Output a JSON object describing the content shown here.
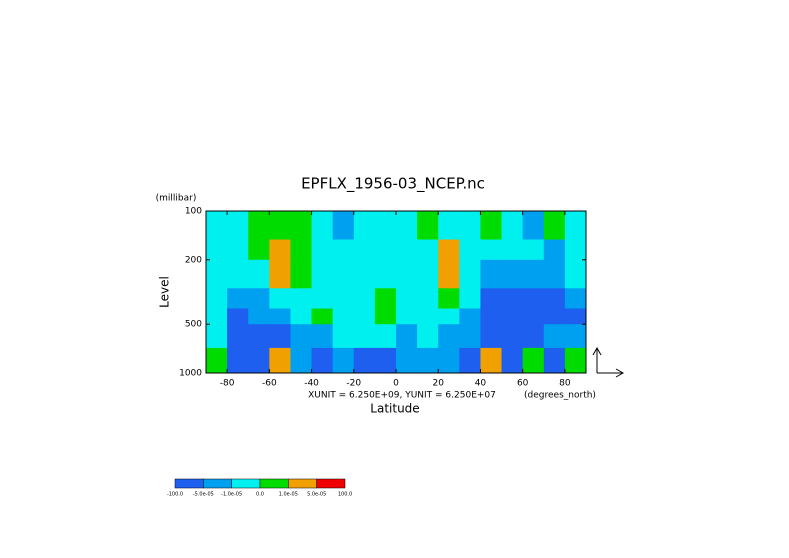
{
  "chart_data": {
    "type": "contour",
    "title": "EPFLX_1956-03_NCEP.nc",
    "y_unit": "(millibar)",
    "ylabel": "Level",
    "xlabel": "Latitude",
    "x_unit": "(degrees_north)",
    "scale_note": "XUNIT = 6.250E+09, YUNIT = 6.250E+07",
    "xlim": [
      -90,
      90
    ],
    "xticks": [
      -80,
      -60,
      -40,
      -20,
      0,
      20,
      40,
      60,
      80
    ],
    "ylim": [
      1000,
      100
    ],
    "yticks": [
      100,
      200,
      500,
      1000
    ],
    "log_y": true,
    "x_edges": [
      -90,
      -80,
      -70,
      -60,
      -50,
      -40,
      -30,
      -20,
      -10,
      0,
      10,
      20,
      30,
      40,
      50,
      60,
      70,
      80,
      90
    ],
    "y_edges": [
      100,
      150,
      200,
      300,
      400,
      500,
      700,
      1000
    ],
    "z": [
      [
        -5e-06,
        -5e-06,
        5e-06,
        5e-06,
        5e-06,
        -5e-06,
        -3e-05,
        -5e-06,
        -5e-06,
        -5e-06,
        5e-06,
        -5e-06,
        -5e-06,
        5e-06,
        -5e-06,
        -3e-05,
        5e-06,
        -5e-06
      ],
      [
        -5e-06,
        -5e-06,
        5e-06,
        3e-05,
        5e-06,
        -5e-06,
        -5e-06,
        -5e-06,
        -5e-06,
        -5e-06,
        -5e-06,
        3e-05,
        -5e-06,
        -5e-06,
        -5e-06,
        -5e-06,
        -3e-05,
        -5e-06
      ],
      [
        -5e-06,
        -5e-06,
        -5e-06,
        3e-05,
        5e-06,
        -5e-06,
        -5e-06,
        -5e-06,
        -5e-06,
        -5e-06,
        -5e-06,
        3e-05,
        -5e-06,
        -3e-05,
        -3e-05,
        -3e-05,
        -3e-05,
        -5e-06
      ],
      [
        -5e-06,
        -3e-05,
        -3e-05,
        -5e-06,
        -5e-06,
        -5e-06,
        -5e-06,
        -5e-06,
        5e-06,
        -5e-06,
        -5e-06,
        5e-06,
        -5e-06,
        -0.0001,
        -0.0001,
        -0.0001,
        -0.0001,
        -3e-05
      ],
      [
        -5e-06,
        -0.0001,
        -3e-05,
        -3e-05,
        -5e-06,
        5e-06,
        -5e-06,
        -5e-06,
        5e-06,
        -5e-06,
        -5e-06,
        -5e-06,
        -3e-05,
        -0.0001,
        -0.0001,
        -0.0001,
        -0.0001,
        -0.0001
      ],
      [
        -5e-06,
        -0.0001,
        -0.0001,
        -0.0001,
        -3e-05,
        -3e-05,
        -5e-06,
        -5e-06,
        -5e-06,
        -3e-05,
        -5e-06,
        -3e-05,
        -3e-05,
        -0.0001,
        -0.0001,
        -0.0001,
        -3e-05,
        -3e-05
      ],
      [
        5e-06,
        -0.0001,
        -0.0001,
        3e-05,
        -3e-05,
        -0.0001,
        -3e-05,
        -0.0001,
        -0.0001,
        -3e-05,
        -3e-05,
        -3e-05,
        -0.0001,
        3e-05,
        -0.0001,
        5e-06,
        -0.0001,
        5e-06
      ]
    ],
    "levels": [
      {
        "value": -100,
        "label": "-100.0"
      },
      {
        "value": -5e-05,
        "label": "-5.0e-05"
      },
      {
        "value": -1e-05,
        "label": "-1.0e-05"
      },
      {
        "value": 0,
        "label": "0.0"
      },
      {
        "value": 1e-05,
        "label": "1.0e-05"
      },
      {
        "value": 5e-05,
        "label": "5.0e-05"
      },
      {
        "value": 100,
        "label": "100.0"
      }
    ],
    "colors": [
      "#1e5ff0",
      "#00a0f0",
      "#00f0f0",
      "#00dc00",
      "#f0a000",
      "#f00000"
    ]
  }
}
